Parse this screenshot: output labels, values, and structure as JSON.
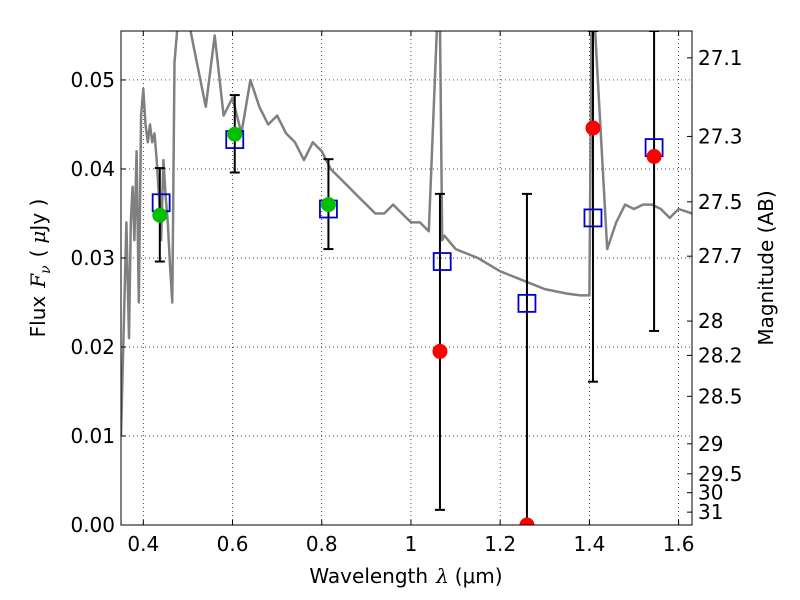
{
  "chart_data": {
    "type": "scatter",
    "xlabel": {
      "prefix": "Wavelength",
      "symbol": "λ",
      "unit": "(μm)"
    },
    "ylabel": {
      "prefix": "Flux",
      "symbol": "F",
      "subscript": "ν",
      "unit_open": "(",
      "unit_mu": "μ",
      "unit_rest": "Jy )"
    },
    "y2label": "Magnitude (AB)",
    "xlim": [
      0.35,
      1.63
    ],
    "ylim": [
      0.0,
      0.0555
    ],
    "xticks": [
      {
        "value": 0.4,
        "label": "0.4"
      },
      {
        "value": 0.6,
        "label": "0.6"
      },
      {
        "value": 0.8,
        "label": "0.8"
      },
      {
        "value": 1.0,
        "label": "1"
      },
      {
        "value": 1.2,
        "label": "1.2"
      },
      {
        "value": 1.4,
        "label": "1.4"
      },
      {
        "value": 1.6,
        "label": "1.6"
      }
    ],
    "yticks": [
      {
        "value": 0.0,
        "label": "0.00"
      },
      {
        "value": 0.01,
        "label": "0.01"
      },
      {
        "value": 0.02,
        "label": "0.02"
      },
      {
        "value": 0.03,
        "label": "0.03"
      },
      {
        "value": 0.04,
        "label": "0.04"
      },
      {
        "value": 0.05,
        "label": "0.05"
      }
    ],
    "magnitude_ticks": [
      {
        "mag": 27.1,
        "label": "27.1"
      },
      {
        "mag": 27.3,
        "label": "27.3"
      },
      {
        "mag": 27.5,
        "label": "27.5"
      },
      {
        "mag": 27.7,
        "label": "27.7"
      },
      {
        "mag": 28.0,
        "label": "28"
      },
      {
        "mag": 28.2,
        "label": "28.2"
      },
      {
        "mag": 28.5,
        "label": "28.5"
      },
      {
        "mag": 29.0,
        "label": "29"
      },
      {
        "mag": 29.5,
        "label": "29.5"
      },
      {
        "mag": 30.0,
        "label": "30"
      },
      {
        "mag": 31.0,
        "label": "31"
      }
    ],
    "grid": true,
    "colors": {
      "model": "#808080",
      "detected": "#00c000",
      "observed": "#ff0000",
      "model_flux": "#0000cc",
      "errorbar": "#000000"
    },
    "model_spectrum": {
      "x": [
        0.35,
        0.362,
        0.368,
        0.372,
        0.376,
        0.38,
        0.385,
        0.39,
        0.395,
        0.4,
        0.405,
        0.41,
        0.415,
        0.42,
        0.425,
        0.43,
        0.435,
        0.44,
        0.445,
        0.45,
        0.455,
        0.46,
        0.465,
        0.47,
        0.48,
        0.49,
        0.5,
        0.52,
        0.54,
        0.56,
        0.58,
        0.6,
        0.62,
        0.64,
        0.66,
        0.68,
        0.7,
        0.72,
        0.74,
        0.76,
        0.78,
        0.8,
        0.82,
        0.84,
        0.86,
        0.88,
        0.9,
        0.92,
        0.94,
        0.96,
        0.98,
        1.0,
        1.02,
        1.04,
        1.06,
        1.065,
        1.07,
        1.075,
        1.1,
        1.15,
        1.2,
        1.25,
        1.3,
        1.35,
        1.38,
        1.4,
        1.405,
        1.41,
        1.44,
        1.46,
        1.48,
        1.5,
        1.52,
        1.54,
        1.56,
        1.58,
        1.6,
        1.63
      ],
      "y": [
        0.01,
        0.034,
        0.021,
        0.034,
        0.038,
        0.032,
        0.042,
        0.025,
        0.046,
        0.049,
        0.045,
        0.043,
        0.045,
        0.043,
        0.044,
        0.041,
        0.037,
        0.032,
        0.041,
        0.037,
        0.034,
        0.029,
        0.025,
        0.052,
        0.058,
        0.056,
        0.057,
        0.052,
        0.047,
        0.055,
        0.046,
        0.048,
        0.044,
        0.05,
        0.047,
        0.045,
        0.046,
        0.044,
        0.043,
        0.041,
        0.043,
        0.042,
        0.04,
        0.039,
        0.038,
        0.037,
        0.036,
        0.035,
        0.035,
        0.036,
        0.035,
        0.034,
        0.034,
        0.033,
        0.058,
        0.056,
        0.032,
        0.0325,
        0.031,
        0.03,
        0.0285,
        0.0275,
        0.0265,
        0.026,
        0.0258,
        0.0258,
        0.058,
        0.058,
        0.031,
        0.034,
        0.036,
        0.0355,
        0.036,
        0.036,
        0.0355,
        0.0345,
        0.0355,
        0.035
      ]
    },
    "observed": [
      {
        "name": "band-0.44",
        "x": 0.437,
        "flux": 0.0348,
        "err_low": 0.0296,
        "err_high": 0.0401,
        "status": "detected"
      },
      {
        "name": "band-0.60",
        "x": 0.605,
        "flux": 0.0439,
        "err_low": 0.0396,
        "err_high": 0.0483,
        "status": "detected"
      },
      {
        "name": "band-0.81",
        "x": 0.815,
        "flux": 0.036,
        "err_low": 0.031,
        "err_high": 0.0411,
        "status": "detected"
      },
      {
        "name": "band-1.06",
        "x": 1.065,
        "flux": 0.0195,
        "err_low": 0.0017,
        "err_high": 0.0372,
        "status": "observed"
      },
      {
        "name": "band-1.26",
        "x": 1.26,
        "flux": 0.0,
        "err_low": 0.0,
        "err_high": 0.0372,
        "status": "observed"
      },
      {
        "name": "band-1.41",
        "x": 1.408,
        "flux": 0.0446,
        "err_low": 0.0161,
        "err_high": 0.0555,
        "status": "observed"
      },
      {
        "name": "band-1.54",
        "x": 1.545,
        "flux": 0.0414,
        "err_low": 0.0218,
        "err_high": 0.0555,
        "status": "observed"
      }
    ],
    "model_fluxes": [
      {
        "x": 0.44,
        "flux": 0.0362
      },
      {
        "x": 0.605,
        "flux": 0.0433
      },
      {
        "x": 0.815,
        "flux": 0.0355
      },
      {
        "x": 1.07,
        "flux": 0.0296
      },
      {
        "x": 1.26,
        "flux": 0.0249
      },
      {
        "x": 1.408,
        "flux": 0.0345
      },
      {
        "x": 1.545,
        "flux": 0.0424
      }
    ]
  }
}
